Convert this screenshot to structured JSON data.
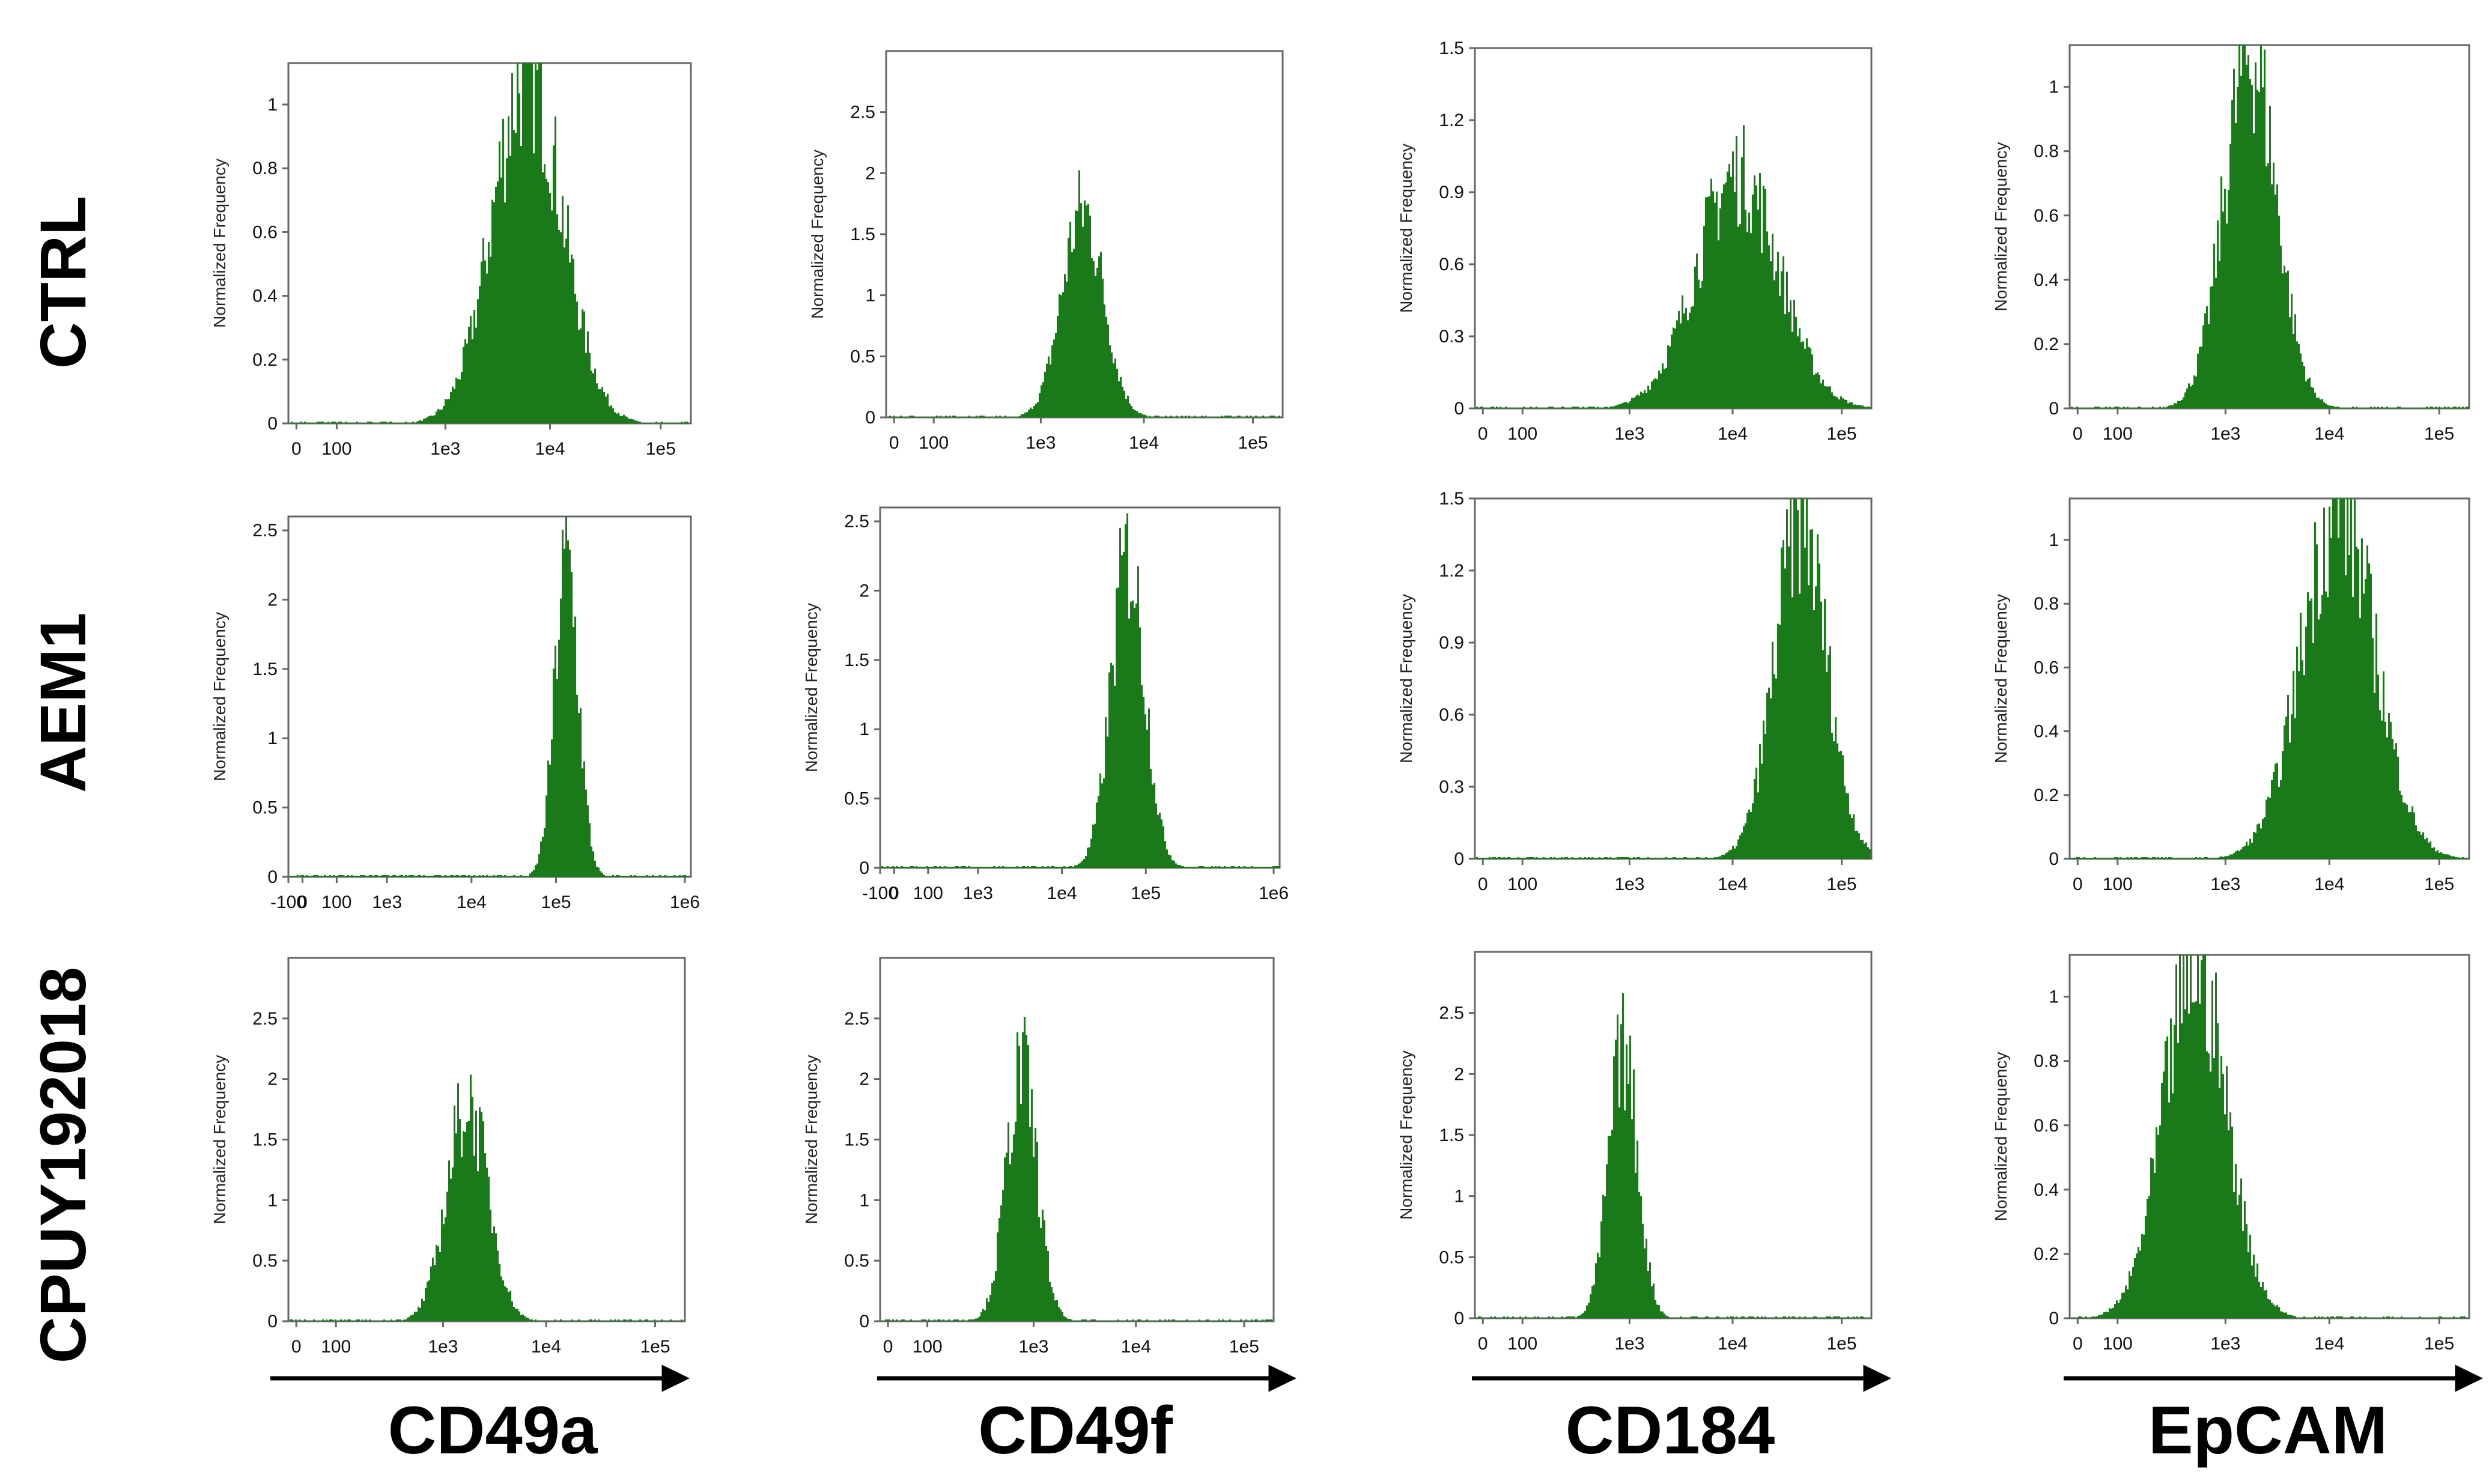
{
  "figure": {
    "row_labels": [
      "CTRL",
      "AEM1",
      "CPUY192018"
    ],
    "column_labels": [
      "CD49a",
      "CD49f",
      "CD184",
      "EpCAM"
    ]
  },
  "colors": {
    "fill": "#1a7a1a",
    "axis": "#666666",
    "text": "#000000",
    "background": "#ffffff"
  },
  "chart_data": [
    {
      "type": "histogram",
      "row": "CTRL",
      "marker": "CD49a",
      "ylabel": "Normalized Frequency",
      "ylim": [
        0,
        1.13
      ],
      "yticks": [
        "0",
        "0.2",
        "0.4",
        "0.6",
        "0.8",
        "1"
      ],
      "xticks": [
        "0",
        "100",
        "1e3",
        "1e4",
        "1e5"
      ],
      "peak_x": "6e3",
      "peak_y": 1.13,
      "spread_decades": 0.33
    },
    {
      "type": "histogram",
      "row": "CTRL",
      "marker": "CD49f",
      "ylabel": "Normalized Frequency",
      "ylim": [
        0,
        3.0
      ],
      "yticks": [
        "0",
        "0.5",
        "1",
        "1.5",
        "2",
        "2.5"
      ],
      "xticks": [
        "0",
        "100",
        "1e3",
        "1e4",
        "1e5"
      ],
      "peak_x": "2.5e3",
      "peak_y": 1.75,
      "spread_decades": 0.2
    },
    {
      "type": "histogram",
      "row": "CTRL",
      "marker": "CD184",
      "ylabel": "Normalized Frequency",
      "ylim": [
        0,
        1.5
      ],
      "yticks": [
        "0",
        "0.3",
        "0.6",
        "0.9",
        "1.2",
        "1.5"
      ],
      "xticks": [
        "0",
        "100",
        "1e3",
        "1e4",
        "1e5"
      ],
      "peak_x": "1.1e4",
      "peak_y": 1.0,
      "spread_decades": 0.4
    },
    {
      "type": "histogram",
      "row": "CTRL",
      "marker": "EpCAM",
      "ylabel": "Normalized Frequency",
      "ylim": [
        0,
        1.13
      ],
      "yticks": [
        "0",
        "0.2",
        "0.4",
        "0.6",
        "0.8",
        "1"
      ],
      "xticks": [
        "0",
        "100",
        "1e3",
        "1e4",
        "1e5"
      ],
      "peak_x": "1.7e3",
      "peak_y": 1.13,
      "spread_decades": 0.25
    },
    {
      "type": "histogram",
      "row": "AEM1",
      "marker": "CD49a",
      "ylabel": "Normalized Frequency",
      "ylim": [
        0,
        2.6
      ],
      "yticks": [
        "0",
        "0.5",
        "1",
        "1.5",
        "2",
        "2.5"
      ],
      "xticks": [
        "-100",
        "0",
        "100",
        "1e3",
        "1e4",
        "1e5",
        "1e6"
      ],
      "peak_x": "1.3e5",
      "peak_y": 2.35,
      "spread_decades": 0.14
    },
    {
      "type": "histogram",
      "row": "AEM1",
      "marker": "CD49f",
      "ylabel": "Normalized Frequency",
      "ylim": [
        0,
        2.6
      ],
      "yticks": [
        "0",
        "0.5",
        "1",
        "1.5",
        "2",
        "2.5"
      ],
      "xticks": [
        "-100",
        "0",
        "100",
        "1e3",
        "1e4",
        "1e5",
        "1e6"
      ],
      "peak_x": "6e4",
      "peak_y": 2.3,
      "spread_decades": 0.2
    },
    {
      "type": "histogram",
      "row": "AEM1",
      "marker": "CD184",
      "ylabel": "Normalized Frequency",
      "ylim": [
        0,
        1.5
      ],
      "yticks": [
        "0",
        "0.3",
        "0.6",
        "0.9",
        "1.2",
        "1.5"
      ],
      "xticks": [
        "0",
        "100",
        "1e3",
        "1e4",
        "1e5"
      ],
      "peak_x": "4.5e4",
      "peak_y": 1.45,
      "spread_decades": 0.25
    },
    {
      "type": "histogram",
      "row": "AEM1",
      "marker": "EpCAM",
      "ylabel": "Normalized Frequency",
      "ylim": [
        0,
        1.13
      ],
      "yticks": [
        "0",
        "0.2",
        "0.4",
        "0.6",
        "0.8",
        "1"
      ],
      "xticks": [
        "0",
        "100",
        "1e3",
        "1e4",
        "1e5"
      ],
      "peak_x": "1.2e4",
      "peak_y": 1.13,
      "spread_decades": 0.35
    },
    {
      "type": "histogram",
      "row": "CPUY192018",
      "marker": "CD49a",
      "ylabel": "Normalized Frequency",
      "ylim": [
        0,
        3.0
      ],
      "yticks": [
        "0",
        "0.5",
        "1",
        "1.5",
        "2",
        "2.5"
      ],
      "xticks": [
        "0",
        "100",
        "1e3",
        "1e4",
        "1e5"
      ],
      "peak_x": "1.7e3",
      "peak_y": 1.85,
      "spread_decades": 0.2
    },
    {
      "type": "histogram",
      "row": "CPUY192018",
      "marker": "CD49f",
      "ylabel": "Normalized Frequency",
      "ylim": [
        0,
        3.0
      ],
      "yticks": [
        "0",
        "0.5",
        "1",
        "1.5",
        "2",
        "2.5"
      ],
      "xticks": [
        "0",
        "100",
        "1e3",
        "1e4",
        "1e5"
      ],
      "peak_x": "750",
      "peak_y": 2.15,
      "spread_decades": 0.15
    },
    {
      "type": "histogram",
      "row": "CPUY192018",
      "marker": "CD184",
      "ylabel": "Normalized Frequency",
      "ylim": [
        0,
        3.0
      ],
      "yticks": [
        "0",
        "0.5",
        "1",
        "1.5",
        "2",
        "2.5"
      ],
      "xticks": [
        "0",
        "100",
        "1e3",
        "1e4",
        "1e5"
      ],
      "peak_x": "850",
      "peak_y": 2.25,
      "spread_decades": 0.14
    },
    {
      "type": "histogram",
      "row": "CPUY192018",
      "marker": "EpCAM",
      "ylabel": "Normalized Frequency",
      "ylim": [
        0,
        1.13
      ],
      "yticks": [
        "0",
        "0.2",
        "0.4",
        "0.6",
        "0.8",
        "1"
      ],
      "xticks": [
        "0",
        "100",
        "1e3",
        "1e4",
        "1e5"
      ],
      "peak_x": "500",
      "peak_y": 1.13,
      "spread_decades": 0.3
    }
  ]
}
